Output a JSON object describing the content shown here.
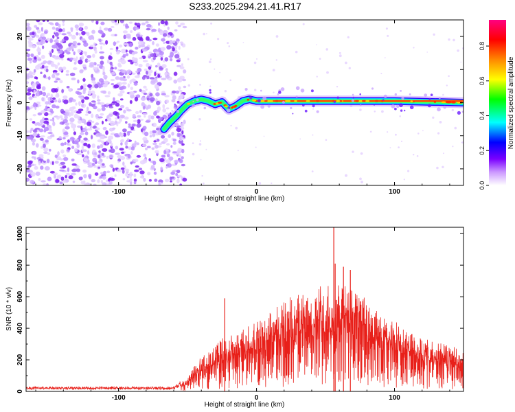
{
  "title": "S233.2025.294.21.41.R17",
  "chart_data": [
    {
      "type": "heatmap",
      "xlabel": "Height of straight line (km)",
      "ylabel": "Frequency (Hz)",
      "xlim": [
        -167,
        150
      ],
      "ylim": [
        -25,
        25
      ],
      "xticks": [
        -100,
        0,
        100
      ],
      "yticks": [
        -20,
        -10,
        0,
        10,
        20
      ],
      "colorbar": {
        "label": "Normalized spectral amplitude",
        "range": [
          0,
          0.95
        ],
        "ticks": [
          0.0,
          0.2,
          0.4,
          0.6,
          0.8
        ],
        "colors": [
          "#ffffff",
          "#cc99ff",
          "#7a00ff",
          "#0000ff",
          "#00ffff",
          "#00ff00",
          "#ffff00",
          "#ff8800",
          "#ff0000",
          "#ff0080"
        ]
      },
      "noise_region_x": [
        -167,
        -60
      ],
      "ridge_points": [
        {
          "x": -67,
          "f": -8
        },
        {
          "x": -63,
          "f": -6
        },
        {
          "x": -58,
          "f": -4
        },
        {
          "x": -55,
          "f": -2.5
        },
        {
          "x": -50,
          "f": -0.5
        },
        {
          "x": -45,
          "f": 0.5
        },
        {
          "x": -40,
          "f": 1
        },
        {
          "x": -35,
          "f": 0.5
        },
        {
          "x": -30,
          "f": -0.5
        },
        {
          "x": -25,
          "f": 0.2
        },
        {
          "x": -20,
          "f": -2
        },
        {
          "x": -15,
          "f": -1
        },
        {
          "x": -10,
          "f": 0.5
        },
        {
          "x": -5,
          "f": 1
        },
        {
          "x": 0,
          "f": 0.5
        },
        {
          "x": 50,
          "f": 0.5
        },
        {
          "x": 100,
          "f": 0.5
        },
        {
          "x": 150,
          "f": 0
        }
      ]
    },
    {
      "type": "line",
      "xlabel": "Height of straight line (km)",
      "ylabel": "SNR (10 * v/v)",
      "xlim": [
        -167,
        150
      ],
      "ylim": [
        0,
        1040
      ],
      "xticks": [
        -100,
        0,
        100
      ],
      "yticks": [
        0,
        200,
        400,
        600,
        800,
        1000
      ],
      "color": "#e8201a",
      "envelope": [
        {
          "x": -167,
          "y": 25
        },
        {
          "x": -60,
          "y": 25
        },
        {
          "x": -50,
          "y": 80
        },
        {
          "x": -40,
          "y": 230
        },
        {
          "x": -25,
          "y": 320
        },
        {
          "x": -10,
          "y": 380
        },
        {
          "x": 0,
          "y": 430
        },
        {
          "x": 20,
          "y": 550
        },
        {
          "x": 40,
          "y": 630
        },
        {
          "x": 55,
          "y": 650
        },
        {
          "x": 70,
          "y": 640
        },
        {
          "x": 80,
          "y": 560
        },
        {
          "x": 90,
          "y": 470
        },
        {
          "x": 110,
          "y": 380
        },
        {
          "x": 130,
          "y": 300
        },
        {
          "x": 150,
          "y": 255
        }
      ],
      "spikes": [
        {
          "x": -23,
          "y": 590
        },
        {
          "x": 56,
          "y": 1040
        },
        {
          "x": 57,
          "y": 810
        },
        {
          "x": 63,
          "y": 790
        },
        {
          "x": 68,
          "y": 770
        }
      ]
    }
  ]
}
